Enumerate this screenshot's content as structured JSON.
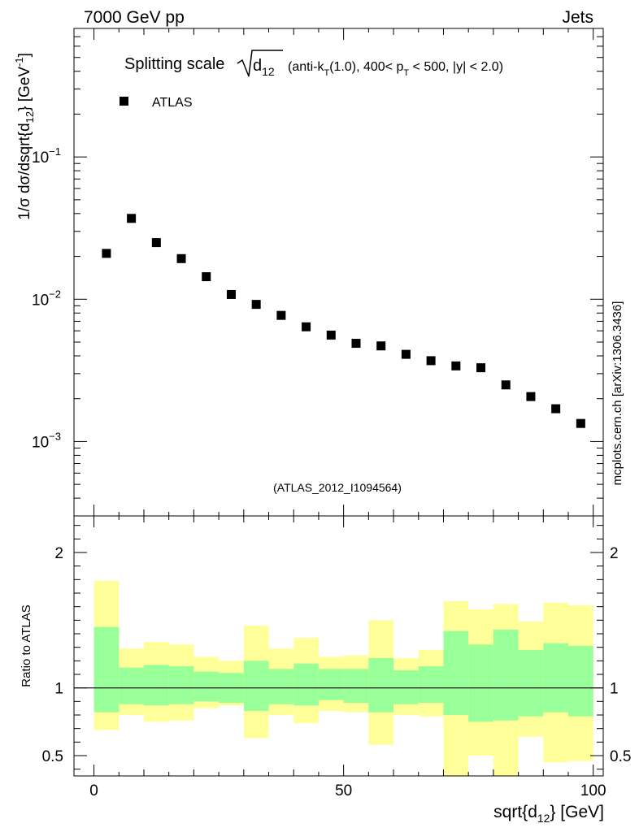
{
  "header": {
    "left": "7000 GeV pp",
    "right": "Jets"
  },
  "side_label": "mcplots.cern.ch [arXiv:1306.3436]",
  "analysis_tag": "(ATLAS_2012_I1094564)",
  "chart_data": {
    "type": "scatter",
    "title": "Splitting scale √d12 (anti-kT(1.0), 400< pT < 500, |y| < 2.0)",
    "title_parts": {
      "prefix": "Splitting scale",
      "sqrt_arg": "d",
      "sqrt_sub": "12",
      "p1": "(anti-k",
      "s1": "T",
      "p2": "(1.0), 400< p",
      "s2": "T",
      "p3": " < 500, |y| < 2.0)"
    },
    "legend": {
      "entries": [
        "ATLAS"
      ],
      "position": "top-left",
      "marker": "filled-square"
    },
    "ylabel_main": "1/σ dσ/dsqrt{d12} [GeV-1]",
    "ylabel_main_parts": {
      "a": "1/σ dσ/dsqrt{d",
      "sub": "12",
      "b": "} [GeV",
      "sup": "-1",
      "c": "]"
    },
    "ylabel_ratio": "Ratio to ATLAS",
    "xlabel": "sqrt{d12} [GeV]",
    "xlabel_parts": {
      "a": "sqrt{d",
      "sub": "12",
      "b": "} [GeV]"
    },
    "xlim": [
      -4,
      102
    ],
    "ylim_main": [
      0.0003,
      0.8
    ],
    "ylim_ratio": [
      0.35,
      2.27
    ],
    "xticks": [
      "0",
      "50",
      "100"
    ],
    "yticks_main": [
      {
        "value": 0.1,
        "base": "10",
        "exp": "−1"
      },
      {
        "value": 0.01,
        "base": "10",
        "exp": "−2"
      },
      {
        "value": 0.001,
        "base": "10",
        "exp": "−3"
      }
    ],
    "yticks_ratio": [
      {
        "value": 2,
        "label": "2"
      },
      {
        "value": 1,
        "label": "1"
      },
      {
        "value": 0.5,
        "label": "0.5"
      }
    ],
    "x": [
      2.5,
      7.5,
      12.5,
      17.5,
      22.5,
      27.5,
      32.5,
      37.5,
      42.5,
      47.5,
      52.5,
      57.5,
      62.5,
      67.5,
      72.5,
      77.5,
      82.5,
      87.5,
      92.5,
      97.5
    ],
    "y": [
      0.021,
      0.037,
      0.025,
      0.0193,
      0.0144,
      0.0108,
      0.0092,
      0.0077,
      0.0064,
      0.0056,
      0.0049,
      0.0047,
      0.0041,
      0.0037,
      0.0034,
      0.0033,
      0.0025,
      0.00207,
      0.0017,
      0.00134
    ],
    "ratio_bands": {
      "bin_edges": [
        0,
        5,
        10,
        15,
        20,
        25,
        30,
        35,
        40,
        45,
        50,
        55,
        60,
        65,
        70,
        75,
        80,
        85,
        90,
        95,
        100
      ],
      "inner_up": [
        1.45,
        1.15,
        1.17,
        1.16,
        1.12,
        1.11,
        1.2,
        1.14,
        1.18,
        1.14,
        1.14,
        1.22,
        1.13,
        1.16,
        1.42,
        1.32,
        1.43,
        1.28,
        1.33,
        1.31
      ],
      "inner_down": [
        0.82,
        0.88,
        0.87,
        0.88,
        0.9,
        0.89,
        0.83,
        0.88,
        0.87,
        0.91,
        0.89,
        0.82,
        0.88,
        0.89,
        0.8,
        0.75,
        0.76,
        0.79,
        0.82,
        0.79
      ],
      "outer_up": [
        1.79,
        1.29,
        1.34,
        1.32,
        1.23,
        1.2,
        1.46,
        1.29,
        1.37,
        1.23,
        1.24,
        1.5,
        1.22,
        1.28,
        1.64,
        1.58,
        1.62,
        1.49,
        1.63,
        1.61
      ],
      "outer_down": [
        0.69,
        0.8,
        0.75,
        0.76,
        0.85,
        0.87,
        0.63,
        0.8,
        0.74,
        0.83,
        0.82,
        0.58,
        0.8,
        0.79,
        0.35,
        0.5,
        0.35,
        0.64,
        0.45,
        0.46
      ]
    },
    "colors": {
      "inner_band": "#99ff99",
      "outer_band": "#ffff99",
      "marker": "#000000",
      "axis": "#000000",
      "tag": "#999999"
    }
  }
}
